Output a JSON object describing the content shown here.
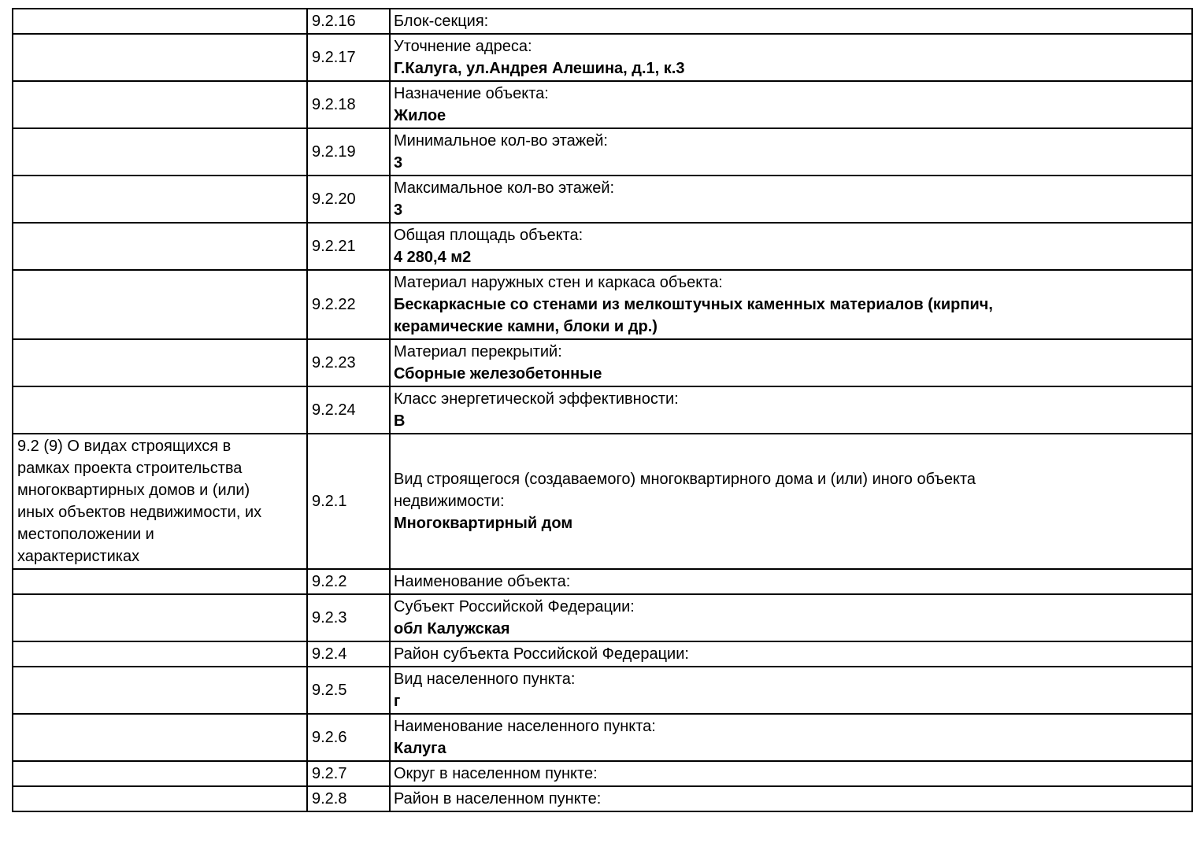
{
  "document": {
    "type": "project-declaration-table",
    "language": "ru",
    "colors": {
      "text": "#000000",
      "border": "#000000",
      "background": "#ffffff"
    }
  },
  "table": {
    "section_label": "9.2 (9) О видах строящихся в\nрамках проекта строительства\nмногоквартирных домов и (или)\nиных объектов недвижимости, их\nместоположении и\nхарактеристиках",
    "rows": [
      {
        "code": "9.2.16",
        "label": "Блок-секция:",
        "value": ""
      },
      {
        "code": "9.2.17",
        "label": "Уточнение адреса:",
        "value": "Г.Калуга, ул.Андрея Алешина, д.1, к.3"
      },
      {
        "code": "9.2.18",
        "label": "Назначение объекта:",
        "value": "Жилое"
      },
      {
        "code": "9.2.19",
        "label": "Минимальное кол-во этажей:",
        "value": "3"
      },
      {
        "code": "9.2.20",
        "label": "Максимальное кол-во этажей:",
        "value": "3"
      },
      {
        "code": "9.2.21",
        "label": "Общая площадь объекта:",
        "value": "4 280,4 м2"
      },
      {
        "code": "9.2.22",
        "label": "Материал наружных стен и каркаса объекта:",
        "value": "Бескаркасные со стенами из мелкоштучных каменных материалов (кирпич,\nкерамические камни, блоки и др.)"
      },
      {
        "code": "9.2.23",
        "label": "Материал перекрытий:",
        "value": "Сборные железобетонные"
      },
      {
        "code": "9.2.24",
        "label": "Класс энергетической эффективности:",
        "value": "В"
      },
      {
        "code": "9.2.1",
        "label": "Вид строящегося (создаваемого) многоквартирного дома и (или) иного объекта\nнедвижимости:",
        "value": "Многоквартирный дом"
      },
      {
        "code": "9.2.2",
        "label": "Наименование объекта:",
        "value": ""
      },
      {
        "code": "9.2.3",
        "label": "Субъект Российской Федерации:",
        "value": "обл Калужская"
      },
      {
        "code": "9.2.4",
        "label": "Район субъекта Российской Федерации:",
        "value": ""
      },
      {
        "code": "9.2.5",
        "label": "Вид населенного пункта:",
        "value": "г"
      },
      {
        "code": "9.2.6",
        "label": "Наименование населенного пункта:",
        "value": "Калуга"
      },
      {
        "code": "9.2.7",
        "label": "Округ в населенном пункте:",
        "value": ""
      },
      {
        "code": "9.2.8",
        "label": "Район в населенном пункте:",
        "value": ""
      }
    ]
  }
}
